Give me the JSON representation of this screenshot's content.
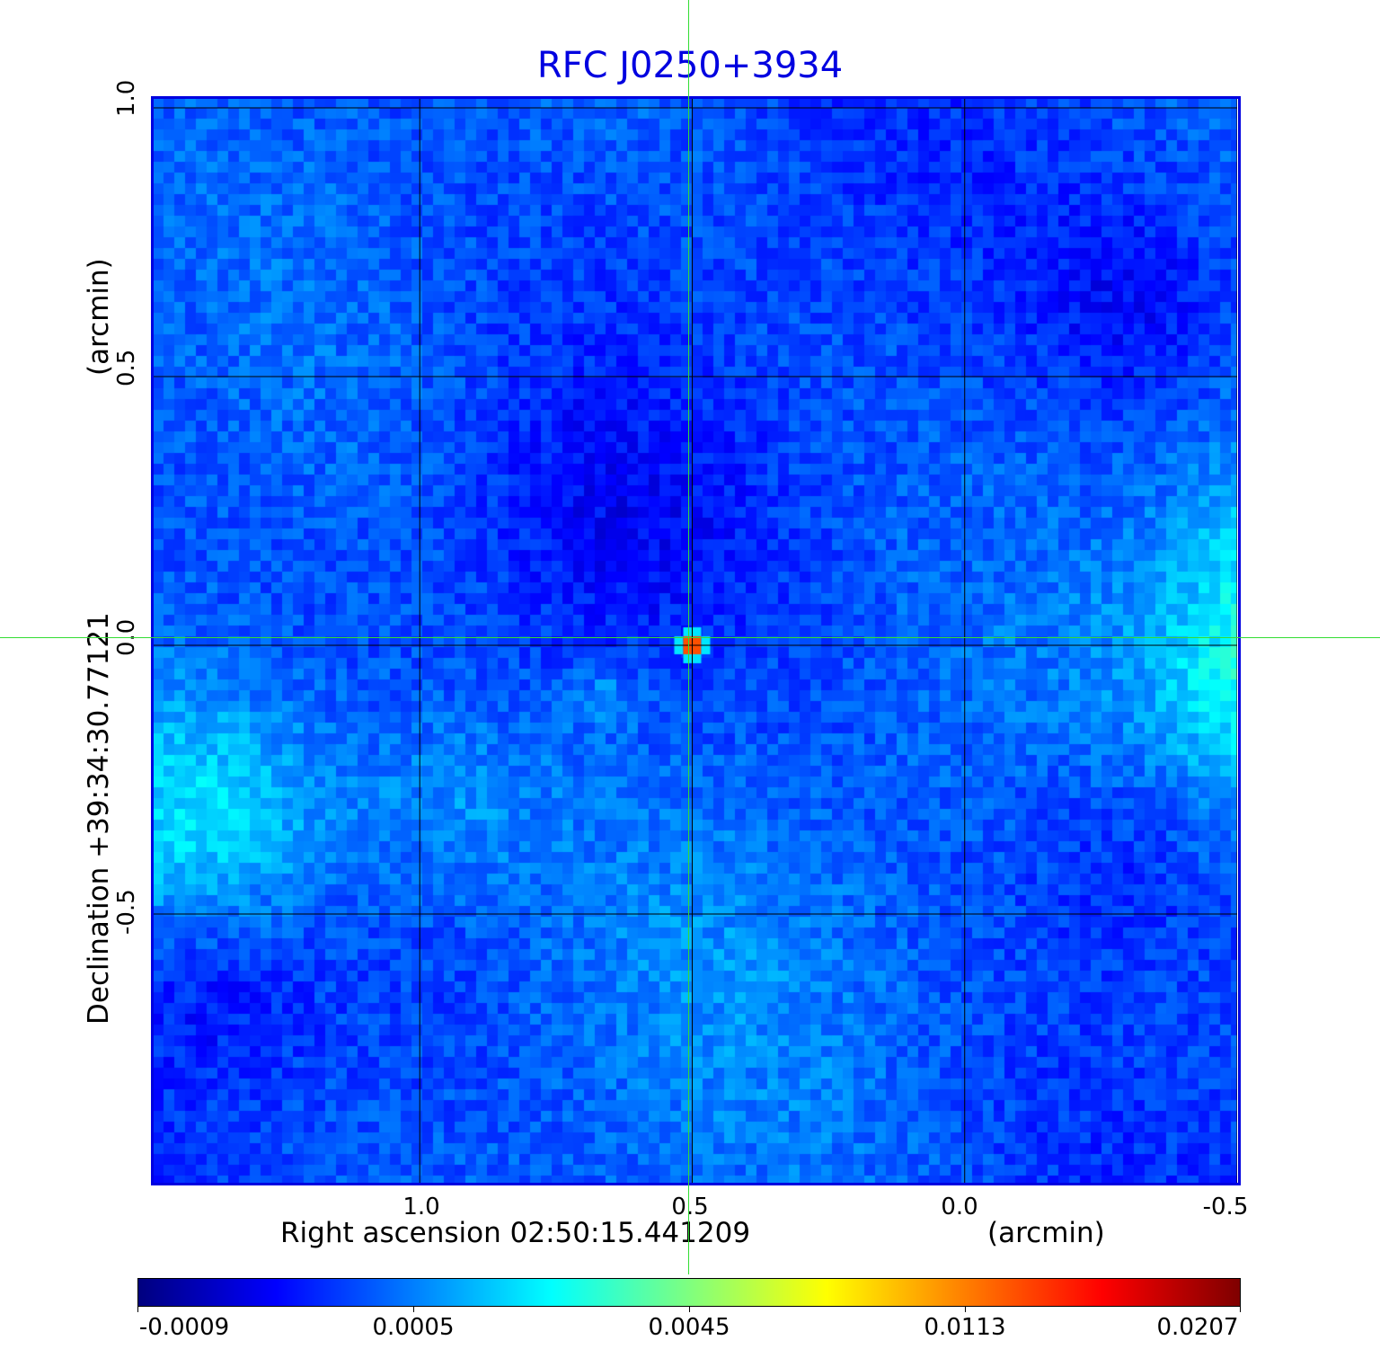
{
  "chart_data": {
    "type": "heatmap",
    "title": "RFC J0250+3934",
    "xlabel": "Right ascension  02:50:15.441209",
    "xunit": "(arcmin)",
    "ylabel": "Declination  +39:34:30.77121",
    "yunit": "(arcmin)",
    "x_ticks": [
      "1.0",
      "0.5",
      "0.0",
      "-0.5"
    ],
    "y_ticks": [
      "1.0",
      "0.5",
      "0.0",
      "-0.5"
    ],
    "xlim": [
      1.49,
      -0.5
    ],
    "ylim": [
      -1.0,
      1.02
    ],
    "grid": true,
    "colormap": "jet",
    "colorbar": {
      "placement": "bottom",
      "ticks": [
        "-0.0009",
        "0.0005",
        "0.0045",
        "0.0113",
        "0.0207"
      ],
      "range": [
        -0.0009,
        0.0207
      ]
    },
    "source_peak": {
      "x": 0.5,
      "y": 0.0,
      "value": 0.0207
    },
    "crosshair": {
      "x": 0.5,
      "y": 0.0,
      "color": "#33dd33"
    },
    "title_color": "#0000e0"
  }
}
